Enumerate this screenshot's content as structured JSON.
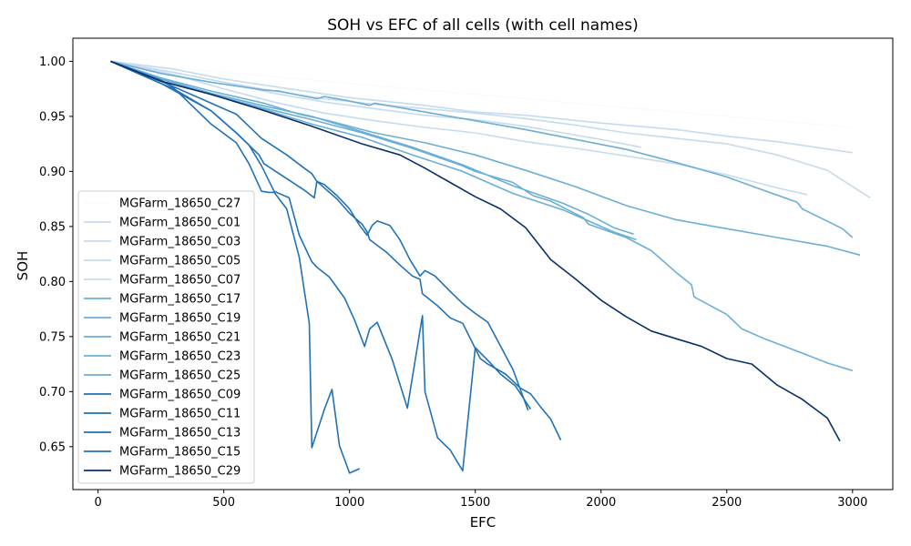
{
  "chart_data": {
    "type": "line",
    "title": "SOH vs EFC of all cells (with cell names)",
    "xlabel": "EFC",
    "ylabel": "SOH",
    "xlim": [
      -100,
      3160
    ],
    "ylim": [
      0.611,
      1.021
    ],
    "xticks": [
      0,
      500,
      1000,
      1500,
      2000,
      2500,
      3000
    ],
    "xtick_labels": [
      "0",
      "500",
      "1000",
      "1500",
      "2000",
      "2500",
      "3000"
    ],
    "yticks": [
      0.65,
      0.7,
      0.75,
      0.8,
      0.85,
      0.9,
      0.95,
      1.0
    ],
    "ytick_labels": [
      "0.65",
      "0.70",
      "0.75",
      "0.80",
      "0.85",
      "0.90",
      "0.95",
      "1.00"
    ],
    "grid": false,
    "legend_position": "lower-left",
    "series": [
      {
        "name": "MGFarm_18650_C27",
        "color": "#f7fbff",
        "x": [
          50,
          500,
          1000,
          1500,
          2000,
          2500,
          3000
        ],
        "y": [
          1.0,
          0.99,
          0.98,
          0.97,
          0.96,
          0.95,
          0.94
        ]
      },
      {
        "name": "MGFarm_18650_C01",
        "color": "#c6dbef",
        "x": [
          50,
          300,
          500,
          700,
          1000,
          1300,
          1500,
          1700,
          2000,
          2300,
          2500,
          2700,
          3000
        ],
        "y": [
          1.0,
          0.993,
          0.984,
          0.977,
          0.967,
          0.96,
          0.954,
          0.951,
          0.944,
          0.938,
          0.932,
          0.927,
          0.917
        ]
      },
      {
        "name": "MGFarm_18650_C03",
        "color": "#c6dbef",
        "x": [
          50,
          300,
          500,
          700,
          900,
          1100,
          1300,
          1500,
          1700,
          1900,
          2100,
          2300,
          2500,
          2700,
          2900,
          3070
        ],
        "y": [
          1.0,
          0.99,
          0.981,
          0.973,
          0.966,
          0.961,
          0.957,
          0.953,
          0.948,
          0.942,
          0.935,
          0.93,
          0.925,
          0.915,
          0.901,
          0.876
        ]
      },
      {
        "name": "MGFarm_18650_C05",
        "color": "#c6dbef",
        "x": [
          50,
          300,
          500,
          700,
          900,
          1100,
          1300,
          1500,
          1700,
          1900,
          2000,
          2160
        ],
        "y": [
          1.0,
          0.99,
          0.981,
          0.971,
          0.963,
          0.957,
          0.951,
          0.947,
          0.941,
          0.933,
          0.929,
          0.922
        ]
      },
      {
        "name": "MGFarm_18650_C07",
        "color": "#c6dbef",
        "x": [
          50,
          300,
          500,
          700,
          900,
          1100,
          1300,
          1500,
          1700,
          1900,
          2100,
          2300,
          2500,
          2700,
          2820
        ],
        "y": [
          1.0,
          0.988,
          0.975,
          0.963,
          0.953,
          0.946,
          0.94,
          0.935,
          0.927,
          0.921,
          0.914,
          0.907,
          0.897,
          0.885,
          0.879
        ]
      },
      {
        "name": "MGFarm_18650_C17",
        "color": "#6baed6",
        "x": [
          50,
          250,
          450,
          660,
          720,
          870,
          900,
          1000,
          1080,
          1100,
          1300,
          1500,
          1700,
          1900,
          2100,
          2300,
          2500,
          2620,
          2780,
          2800,
          2960,
          3000
        ],
        "y": [
          1.0,
          0.989,
          0.981,
          0.974,
          0.973,
          0.966,
          0.968,
          0.964,
          0.96,
          0.962,
          0.954,
          0.946,
          0.938,
          0.929,
          0.92,
          0.908,
          0.895,
          0.885,
          0.872,
          0.866,
          0.848,
          0.84
        ]
      },
      {
        "name": "MGFarm_18650_C19",
        "color": "#6baed6",
        "x": [
          50,
          250,
          450,
          660,
          800,
          900,
          1100,
          1300,
          1500,
          1700,
          1900,
          2100,
          2300,
          2500,
          2700,
          2900,
          3030
        ],
        "y": [
          1.0,
          0.985,
          0.973,
          0.962,
          0.952,
          0.947,
          0.935,
          0.926,
          0.915,
          0.901,
          0.886,
          0.869,
          0.856,
          0.848,
          0.84,
          0.832,
          0.824
        ]
      },
      {
        "name": "MGFarm_18650_C21",
        "color": "#6baed6",
        "x": [
          50,
          250,
          450,
          650,
          850,
          1050,
          1250,
          1450,
          1500,
          1650,
          1730,
          1800,
          1930,
          1950,
          2100,
          2200,
          2300,
          2360,
          2370,
          2500,
          2560,
          2650,
          2800,
          2900,
          3000
        ],
        "y": [
          1.0,
          0.984,
          0.97,
          0.958,
          0.947,
          0.935,
          0.921,
          0.905,
          0.9,
          0.89,
          0.878,
          0.873,
          0.858,
          0.852,
          0.84,
          0.828,
          0.808,
          0.797,
          0.786,
          0.77,
          0.757,
          0.748,
          0.735,
          0.726,
          0.719
        ]
      },
      {
        "name": "MGFarm_18650_C23",
        "color": "#6baed6",
        "x": [
          50,
          250,
          450,
          650,
          850,
          1050,
          1250,
          1450,
          1650,
          1850,
          2050,
          2140
        ],
        "y": [
          1.0,
          0.984,
          0.97,
          0.957,
          0.943,
          0.931,
          0.915,
          0.9,
          0.88,
          0.865,
          0.845,
          0.838
        ]
      },
      {
        "name": "MGFarm_18650_C25",
        "color": "#6baed6",
        "x": [
          50,
          250,
          450,
          650,
          850,
          1050,
          1250,
          1450,
          1650,
          1850,
          1950,
          2050,
          2130
        ],
        "y": [
          1.0,
          0.984,
          0.971,
          0.96,
          0.95,
          0.936,
          0.922,
          0.906,
          0.887,
          0.871,
          0.861,
          0.849,
          0.843
        ]
      },
      {
        "name": "MGFarm_18650_C09",
        "color": "#2171b5",
        "x": [
          50,
          200,
          300,
          450,
          550,
          640,
          660,
          700,
          820,
          860,
          870,
          950,
          1000,
          1050,
          1070,
          1080,
          1150,
          1200,
          1250,
          1280,
          1290,
          1350,
          1400,
          1450,
          1520,
          1550,
          1620,
          1680,
          1720,
          1760,
          1800,
          1840
        ],
        "y": [
          1.0,
          0.985,
          0.975,
          0.955,
          0.935,
          0.915,
          0.907,
          0.901,
          0.883,
          0.876,
          0.891,
          0.875,
          0.862,
          0.852,
          0.845,
          0.838,
          0.826,
          0.815,
          0.805,
          0.802,
          0.789,
          0.778,
          0.767,
          0.762,
          0.73,
          0.725,
          0.716,
          0.703,
          0.698,
          0.686,
          0.675,
          0.656
        ]
      },
      {
        "name": "MGFarm_18650_C11",
        "color": "#2171b5",
        "x": [
          50,
          200,
          300,
          450,
          550,
          650,
          750,
          820,
          850,
          870,
          900,
          950,
          1000,
          1040,
          1070,
          1090,
          1110,
          1160,
          1200,
          1240,
          1280,
          1300,
          1340,
          1400,
          1450,
          1500,
          1550,
          1650,
          1710
        ],
        "y": [
          1.0,
          0.987,
          0.977,
          0.962,
          0.952,
          0.93,
          0.915,
          0.903,
          0.898,
          0.891,
          0.888,
          0.878,
          0.866,
          0.851,
          0.842,
          0.851,
          0.855,
          0.851,
          0.838,
          0.82,
          0.805,
          0.81,
          0.805,
          0.791,
          0.78,
          0.771,
          0.763,
          0.72,
          0.683
        ]
      },
      {
        "name": "MGFarm_18650_C13",
        "color": "#2171b5",
        "x": [
          50,
          250,
          300,
          450,
          550,
          600,
          650,
          680,
          700,
          750,
          800,
          840,
          850,
          900,
          930,
          960,
          1000,
          1040
        ],
        "y": [
          1.0,
          0.983,
          0.976,
          0.943,
          0.926,
          0.907,
          0.882,
          0.881,
          0.881,
          0.866,
          0.822,
          0.762,
          0.649,
          0.684,
          0.702,
          0.651,
          0.626,
          0.63
        ]
      },
      {
        "name": "MGFarm_18650_C15",
        "color": "#2171b5",
        "x": [
          50,
          250,
          450,
          550,
          600,
          650,
          700,
          760,
          800,
          850,
          870,
          920,
          980,
          1020,
          1060,
          1080,
          1110,
          1170,
          1230,
          1290,
          1300,
          1350,
          1400,
          1450,
          1500,
          1560,
          1600,
          1660,
          1720
        ],
        "y": [
          1.0,
          0.98,
          0.955,
          0.935,
          0.924,
          0.905,
          0.882,
          0.876,
          0.842,
          0.818,
          0.813,
          0.804,
          0.785,
          0.765,
          0.741,
          0.757,
          0.763,
          0.729,
          0.685,
          0.769,
          0.7,
          0.658,
          0.647,
          0.628,
          0.74,
          0.726,
          0.716,
          0.705,
          0.684
        ]
      },
      {
        "name": "MGFarm_18650_C29",
        "color": "#08306b",
        "x": [
          50,
          250,
          450,
          650,
          850,
          1050,
          1200,
          1300,
          1400,
          1500,
          1600,
          1700,
          1800,
          1900,
          2000,
          2100,
          2200,
          2300,
          2400,
          2500,
          2600,
          2700,
          2800,
          2900,
          2950
        ],
        "y": [
          1.0,
          0.982,
          0.97,
          0.956,
          0.941,
          0.925,
          0.915,
          0.903,
          0.89,
          0.877,
          0.866,
          0.849,
          0.82,
          0.802,
          0.783,
          0.768,
          0.755,
          0.748,
          0.741,
          0.73,
          0.725,
          0.706,
          0.693,
          0.676,
          0.655
        ]
      }
    ]
  }
}
